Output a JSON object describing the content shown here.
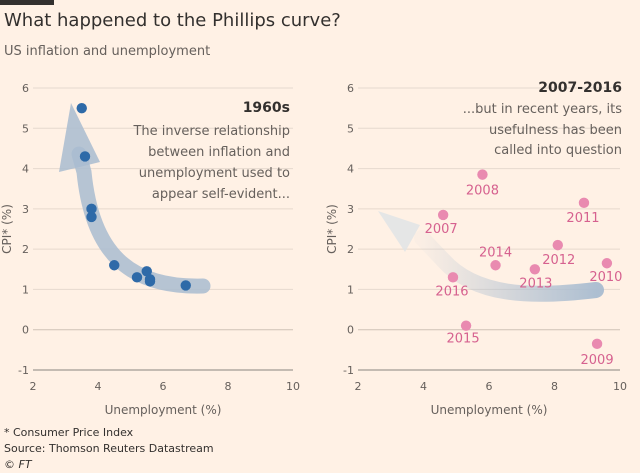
{
  "title": "What happened to the Phillips curve?",
  "subtitle": "US inflation and unemployment",
  "footnote": "* Consumer Price Index",
  "source": "Source: Thomson Reuters Datastream",
  "copyright": "© FT",
  "colors": {
    "background": "#fff1e5",
    "blue_points": "#2e6aa8",
    "pink_points": "#e98ab0",
    "pink_labels": "#d6618f",
    "arrow": "#a9bcd0"
  },
  "chart_data": [
    {
      "type": "scatter",
      "xlabel": "Unemployment (%)",
      "ylabel": "CPI* (%)",
      "xlim": [
        2,
        10
      ],
      "ylim": [
        -1,
        6
      ],
      "xticks": [
        "2",
        "4",
        "6",
        "8",
        "10"
      ],
      "yticks": [
        "-1",
        "0",
        "1",
        "2",
        "3",
        "4",
        "5",
        "6"
      ],
      "grid": true,
      "annotation_title": "1960s",
      "annotation_lines": [
        "The inverse relationship",
        "between inflation and",
        "unemployment used to",
        "appear self-evident..."
      ],
      "points": [
        {
          "x": 3.5,
          "y": 5.5
        },
        {
          "x": 3.6,
          "y": 4.3
        },
        {
          "x": 3.8,
          "y": 3.0
        },
        {
          "x": 3.8,
          "y": 2.8
        },
        {
          "x": 4.5,
          "y": 1.6
        },
        {
          "x": 5.2,
          "y": 1.3
        },
        {
          "x": 5.5,
          "y": 1.45
        },
        {
          "x": 5.6,
          "y": 1.25
        },
        {
          "x": 5.6,
          "y": 1.2
        },
        {
          "x": 6.7,
          "y": 1.1
        }
      ]
    },
    {
      "type": "scatter",
      "xlabel": "Unemployment (%)",
      "ylabel": "CPI* (%)",
      "xlim": [
        2,
        10
      ],
      "ylim": [
        -1,
        6
      ],
      "xticks": [
        "2",
        "4",
        "6",
        "8",
        "10"
      ],
      "yticks": [
        "-1",
        "0",
        "1",
        "2",
        "3",
        "4",
        "5",
        "6"
      ],
      "grid": true,
      "annotation_title": "2007-2016",
      "annotation_lines": [
        "...but in recent years, its",
        "usefulness has been",
        "called into question"
      ],
      "points": [
        {
          "label": "2007",
          "x": 4.6,
          "y": 2.85
        },
        {
          "label": "2008",
          "x": 5.8,
          "y": 3.85
        },
        {
          "label": "2009",
          "x": 9.3,
          "y": -0.35
        },
        {
          "label": "2010",
          "x": 9.6,
          "y": 1.65
        },
        {
          "label": "2011",
          "x": 8.9,
          "y": 3.15
        },
        {
          "label": "2012",
          "x": 8.1,
          "y": 2.1
        },
        {
          "label": "2013",
          "x": 7.4,
          "y": 1.5
        },
        {
          "label": "2014",
          "x": 6.2,
          "y": 1.6
        },
        {
          "label": "2015",
          "x": 5.3,
          "y": 0.1
        },
        {
          "label": "2016",
          "x": 4.9,
          "y": 1.3
        }
      ]
    }
  ]
}
